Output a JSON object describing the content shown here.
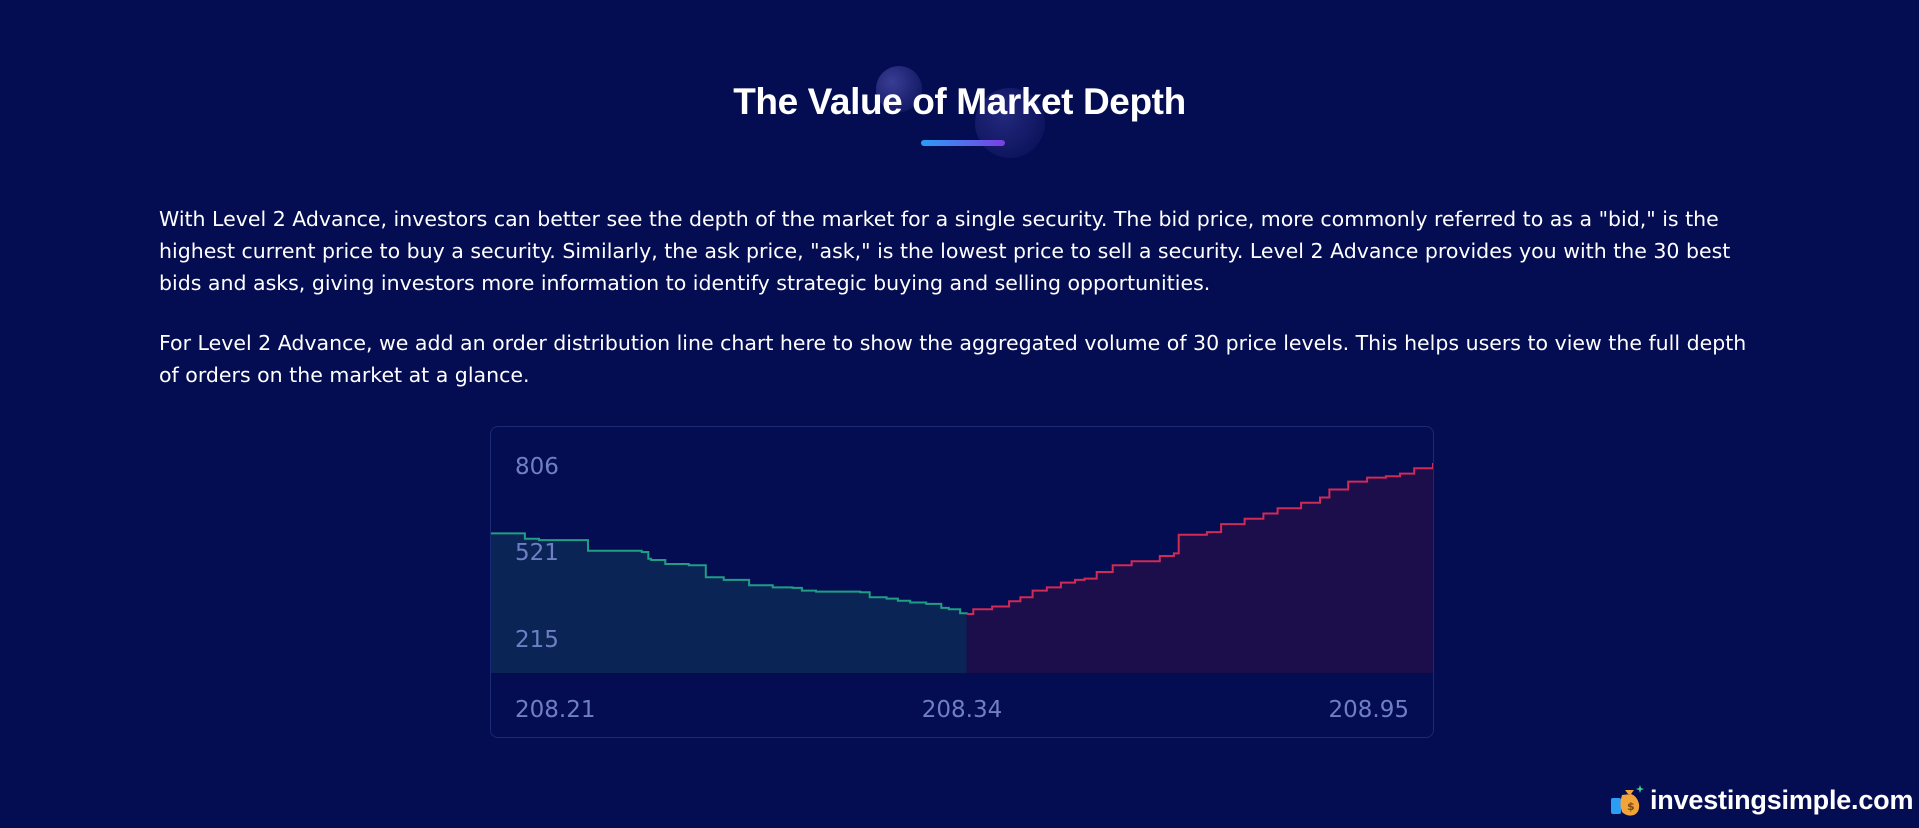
{
  "header": {
    "title": "The Value of Market Depth"
  },
  "content": {
    "paragraph1": "With Level 2 Advance, investors can better see the depth of the market for a single security. The bid price, more commonly referred to as a \"bid,\" is the highest current price to buy a security. Similarly, the ask price, \"ask,\" is the lowest price to sell a security. Level 2 Advance provides you with the 30 best bids and asks, giving investors more information to identify strategic buying and selling opportunities.",
    "paragraph2": "For Level 2 Advance, we add an order distribution line chart here to show the aggregated volume of 30 price levels. This helps users to view the full depth of orders on the market at a glance."
  },
  "brand": {
    "name": "investingsimple.com",
    "icon": "money-bag-icon"
  },
  "colors": {
    "background": "#050d52",
    "bid_line": "#1f9e84",
    "bid_fill": "#0a2456",
    "ask_line": "#d02a55",
    "ask_fill": "#1b0e4a",
    "tick": "#6f7fc6"
  },
  "chart_data": {
    "type": "area",
    "title": "",
    "xlabel": "",
    "ylabel": "",
    "y_ticks": [
      "806",
      "521",
      "215"
    ],
    "x_ticks": [
      "208.21",
      "208.34",
      "208.95"
    ],
    "ylim": [
      0,
      850
    ],
    "grid": false,
    "legend": "none",
    "series": [
      {
        "side": "bid",
        "points": [
          [
            0.0,
            525
          ],
          [
            0.028,
            525
          ],
          [
            0.036,
            505
          ],
          [
            0.051,
            500
          ],
          [
            0.07,
            500
          ],
          [
            0.103,
            460
          ],
          [
            0.16,
            455
          ],
          [
            0.167,
            430
          ],
          [
            0.17,
            425
          ],
          [
            0.185,
            410
          ],
          [
            0.21,
            405
          ],
          [
            0.228,
            360
          ],
          [
            0.247,
            350
          ],
          [
            0.268,
            350
          ],
          [
            0.274,
            330
          ],
          [
            0.299,
            322
          ],
          [
            0.32,
            320
          ],
          [
            0.33,
            310
          ],
          [
            0.345,
            306
          ],
          [
            0.392,
            304
          ],
          [
            0.402,
            285
          ],
          [
            0.42,
            280
          ],
          [
            0.432,
            272
          ],
          [
            0.445,
            265
          ],
          [
            0.462,
            260
          ],
          [
            0.478,
            245
          ],
          [
            0.486,
            240
          ],
          [
            0.492,
            240
          ],
          [
            0.498,
            225
          ],
          [
            0.505,
            222
          ]
        ]
      },
      {
        "side": "ask",
        "points": [
          [
            0.505,
            222
          ],
          [
            0.512,
            240
          ],
          [
            0.532,
            250
          ],
          [
            0.55,
            270
          ],
          [
            0.562,
            285
          ],
          [
            0.575,
            310
          ],
          [
            0.59,
            322
          ],
          [
            0.605,
            340
          ],
          [
            0.62,
            350
          ],
          [
            0.63,
            355
          ],
          [
            0.643,
            380
          ],
          [
            0.66,
            405
          ],
          [
            0.68,
            420
          ],
          [
            0.71,
            440
          ],
          [
            0.725,
            450
          ],
          [
            0.73,
            520
          ],
          [
            0.76,
            530
          ],
          [
            0.775,
            560
          ],
          [
            0.8,
            580
          ],
          [
            0.82,
            600
          ],
          [
            0.835,
            620
          ],
          [
            0.86,
            640
          ],
          [
            0.88,
            660
          ],
          [
            0.89,
            690
          ],
          [
            0.91,
            720
          ],
          [
            0.93,
            735
          ],
          [
            0.95,
            740
          ],
          [
            0.965,
            750
          ],
          [
            0.98,
            770
          ],
          [
            1.0,
            790
          ]
        ]
      }
    ]
  }
}
